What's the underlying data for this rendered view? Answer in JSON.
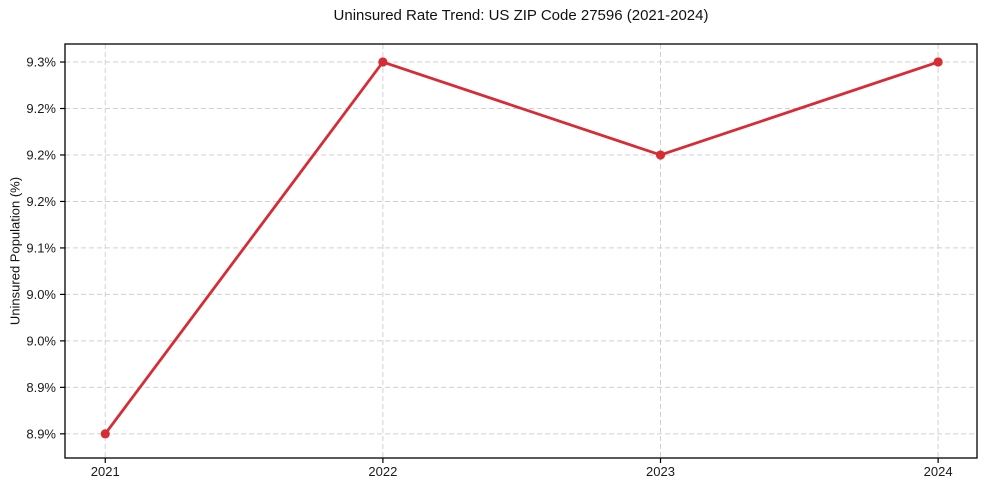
{
  "figure": {
    "background": "#ffffff"
  },
  "chart_data": {
    "type": "line",
    "title": "Uninsured Rate Trend: US ZIP Code 27596 (2021-2024)",
    "xlabel": "",
    "ylabel": "Uninsured Population (%)",
    "x": [
      2021,
      2022,
      2023,
      2024
    ],
    "x_tick_labels": [
      "2021",
      "2022",
      "2023",
      "2024"
    ],
    "values": [
      8.9,
      9.3,
      9.2,
      9.3
    ],
    "y_ticks": {
      "values": [
        8.9,
        8.95,
        9.0,
        9.05,
        9.1,
        9.15,
        9.2,
        9.25,
        9.3
      ],
      "labels": [
        "8.9%",
        "8.9%",
        "9.0%",
        "9.0%",
        "9.1%",
        "9.2%",
        "9.2%",
        "9.2%",
        "9.3%"
      ]
    },
    "xlim": [
      2020.855,
      2024.14
    ],
    "ylim": [
      8.874,
      9.3194
    ],
    "legend": null,
    "grid": {
      "show": true,
      "style": "dashed",
      "color": "#d0d0d0"
    },
    "line_color": "#d62d35",
    "marker": "circle",
    "axes": {
      "spine_color": "#000000",
      "tick_label_color": "#1a1a1a"
    }
  }
}
